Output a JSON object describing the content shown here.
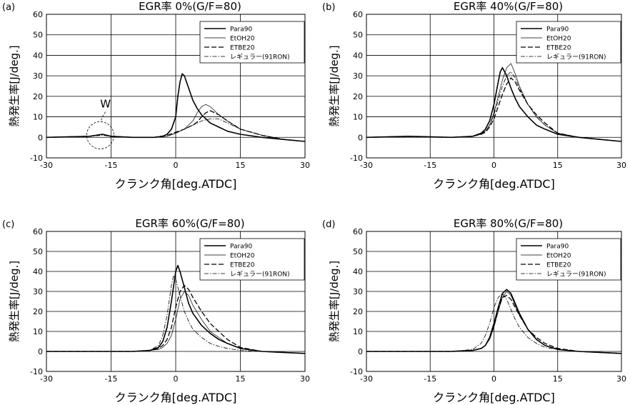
{
  "figure": {
    "panel_titles": [
      "EGR率 0%(G/F=80)",
      "EGR率 40%(G/F=80)",
      "EGR率 60%(G/F=80)",
      "EGR率 80%(G/F=80)"
    ],
    "xlabel": "クランク角[deg.ATDC]",
    "ylabel": "熱発生率[J/deg.]",
    "x_ticks": [
      "-30",
      "-15",
      "0",
      "15",
      "30"
    ],
    "y_ticks": [
      "-10",
      "0",
      "10",
      "20",
      "30",
      "40",
      "50",
      "60"
    ],
    "annotation_w": "W"
  },
  "chart_data": [
    {
      "type": "line",
      "panel": "(a)",
      "title": "EGR率 0%(G/F=80)",
      "xlabel": "クランク角[deg.ATDC]",
      "ylabel": "熱発生率[J/deg.]",
      "xlim": [
        -30,
        30
      ],
      "ylim": [
        -10,
        60
      ],
      "grid": true,
      "legend": "top-right",
      "series": [
        {
          "name": "Para90",
          "style": "solid",
          "x": [
            -30,
            -20,
            -17,
            -15,
            -10,
            -5,
            -3,
            -2,
            -1,
            0,
            0.5,
            1,
            1.5,
            2,
            3,
            4,
            5,
            6,
            8,
            10,
            12,
            15,
            20,
            25,
            30
          ],
          "y": [
            0,
            0.5,
            1.5,
            0.5,
            0,
            0,
            0.5,
            1.5,
            4,
            10,
            20,
            27,
            31,
            30,
            24,
            18,
            14,
            11,
            7,
            5,
            3,
            1.5,
            0,
            -1,
            -2
          ]
        },
        {
          "name": "EtOH20",
          "style": "thin",
          "x": [
            -30,
            -20,
            -17,
            -15,
            -10,
            -5,
            -2,
            0,
            2,
            4,
            5,
            6,
            7,
            8,
            9,
            10,
            12,
            15,
            20,
            25,
            30
          ],
          "y": [
            0,
            0.5,
            1.5,
            0.5,
            0,
            0,
            0.5,
            2,
            4,
            8,
            12,
            15,
            16,
            15,
            13,
            11,
            8,
            4,
            1,
            -1,
            -2
          ]
        },
        {
          "name": "ETBE20",
          "style": "long-dash",
          "x": [
            -30,
            -20,
            -17,
            -15,
            -10,
            -5,
            -2,
            0,
            2,
            4,
            5,
            6,
            7,
            8,
            9,
            10,
            12,
            15,
            20,
            25,
            30
          ],
          "y": [
            0,
            0.5,
            1.5,
            0.5,
            0,
            0,
            1,
            2.5,
            4,
            6,
            7.5,
            10,
            12,
            13,
            12,
            11,
            8,
            4,
            1,
            -1,
            -2
          ]
        },
        {
          "name": "レギュラー(91RON)",
          "style": "dash-dot",
          "x": [
            -30,
            -20,
            -17,
            -15,
            -10,
            -5,
            -2,
            0,
            2,
            4,
            6,
            8,
            10,
            12,
            15,
            20,
            25,
            30
          ],
          "y": [
            0,
            0.5,
            1,
            0.5,
            0,
            0,
            0.5,
            2,
            4,
            6,
            8,
            9,
            9,
            7,
            4,
            1,
            -1,
            -2
          ]
        }
      ]
    },
    {
      "type": "line",
      "panel": "(b)",
      "title": "EGR率 40%(G/F=80)",
      "xlabel": "クランク角[deg.ATDC]",
      "ylabel": "熱発生率[J/deg.]",
      "xlim": [
        -30,
        30
      ],
      "ylim": [
        -10,
        60
      ],
      "grid": true,
      "legend": "top-right",
      "series": [
        {
          "name": "Para90",
          "style": "solid",
          "x": [
            -30,
            -20,
            -10,
            -5,
            -3,
            -2,
            -1,
            0,
            1,
            1.5,
            2,
            3,
            4,
            5,
            6,
            8,
            10,
            12,
            15,
            20,
            25,
            30
          ],
          "y": [
            0,
            0.5,
            0,
            0.5,
            2,
            4,
            8,
            16,
            27,
            32,
            34,
            30,
            24,
            19,
            15,
            10,
            6,
            4,
            1.5,
            0,
            -1,
            -2
          ]
        },
        {
          "name": "EtOH20",
          "style": "thin",
          "x": [
            -30,
            -20,
            -10,
            -5,
            -3,
            -2,
            -1,
            0,
            1,
            2,
            3,
            4,
            5,
            6,
            8,
            10,
            12,
            15,
            20,
            25,
            30
          ],
          "y": [
            0,
            0.5,
            0,
            0.5,
            1.5,
            3,
            6,
            12,
            20,
            28,
            34,
            36,
            31,
            25,
            16,
            10,
            6,
            2,
            0,
            -1,
            -2
          ]
        },
        {
          "name": "ETBE20",
          "style": "long-dash",
          "x": [
            -30,
            -20,
            -10,
            -5,
            -3,
            -2,
            -1,
            0,
            1,
            2,
            3,
            4,
            5,
            6,
            8,
            10,
            12,
            15,
            20,
            25,
            30
          ],
          "y": [
            0,
            0.5,
            0,
            0.5,
            1.5,
            2.5,
            5,
            9,
            15,
            21,
            26,
            29,
            27,
            23,
            16,
            11,
            7,
            2,
            0,
            -1,
            -2
          ]
        },
        {
          "name": "レギュラー(91RON)",
          "style": "dash-dot",
          "x": [
            -30,
            -20,
            -10,
            -5,
            -3,
            -2,
            -1,
            0,
            1,
            2,
            3,
            4,
            5,
            6,
            8,
            10,
            12,
            15,
            20,
            25,
            30
          ],
          "y": [
            0,
            0.5,
            0,
            0.5,
            2,
            3,
            6,
            11,
            18,
            25,
            30,
            32,
            29,
            24,
            16,
            10,
            6,
            2,
            0,
            -1,
            -2
          ]
        }
      ]
    },
    {
      "type": "line",
      "panel": "(c)",
      "title": "EGR率 60%(G/F=80)",
      "xlabel": "クランク角[deg.ATDC]",
      "ylabel": "熱発生率[J/deg.]",
      "xlim": [
        -30,
        30
      ],
      "ylim": [
        -10,
        60
      ],
      "grid": true,
      "legend": "top-right",
      "series": [
        {
          "name": "Para90",
          "style": "solid",
          "x": [
            -30,
            -20,
            -10,
            -6,
            -4,
            -3,
            -2,
            -1,
            0,
            0.5,
            1,
            2,
            3,
            4,
            6,
            8,
            10,
            12,
            15,
            20,
            25,
            30
          ],
          "y": [
            0,
            0,
            0,
            0.5,
            2,
            5,
            12,
            25,
            40,
            43,
            40,
            32,
            24,
            19,
            13,
            9,
            6,
            4,
            1.5,
            0,
            -0.5,
            -1
          ]
        },
        {
          "name": "EtOH20",
          "style": "thin",
          "x": [
            -30,
            -20,
            -10,
            -6,
            -4,
            -3,
            -2,
            -1,
            0,
            1,
            2,
            3,
            4,
            6,
            8,
            10,
            12,
            15,
            20,
            25,
            30
          ],
          "y": [
            0,
            0,
            0,
            0.5,
            1,
            2,
            4,
            8,
            16,
            26,
            30,
            28,
            23,
            16,
            10,
            7,
            4,
            1.5,
            0,
            -0.5,
            -1
          ]
        },
        {
          "name": "ETBE20",
          "style": "long-dash",
          "x": [
            -30,
            -20,
            -10,
            -6,
            -4,
            -3,
            -2,
            -1,
            0,
            1,
            2,
            3,
            4,
            6,
            8,
            10,
            12,
            15,
            20,
            25,
            30
          ],
          "y": [
            0,
            0,
            0,
            0.5,
            1.5,
            3,
            6,
            12,
            22,
            30,
            33,
            31,
            27,
            20,
            14,
            10,
            6,
            2,
            0,
            -0.5,
            -1
          ]
        },
        {
          "name": "レギュラー(91RON)",
          "style": "dash-dot",
          "x": [
            -30,
            -20,
            -10,
            -6,
            -4,
            -3,
            -2,
            -1,
            -0.5,
            0,
            1,
            2,
            3,
            4,
            6,
            8,
            10,
            12,
            15,
            20,
            25,
            30
          ],
          "y": [
            0,
            0,
            0,
            0.5,
            3,
            8,
            18,
            33,
            38,
            36,
            28,
            20,
            15,
            11,
            7,
            4,
            2.5,
            1.5,
            0.5,
            0,
            -0.5,
            -1
          ]
        }
      ]
    },
    {
      "type": "line",
      "panel": "(d)",
      "title": "EGR率 80%(G/F=80)",
      "xlabel": "クランク角[deg.ATDC]",
      "ylabel": "熱発生率[J/deg.]",
      "xlim": [
        -30,
        30
      ],
      "ylim": [
        -10,
        60
      ],
      "grid": true,
      "legend": "top-right",
      "series": [
        {
          "name": "Para90",
          "style": "solid",
          "x": [
            -30,
            -20,
            -10,
            -5,
            -3,
            -2,
            -1,
            0,
            1,
            2,
            3,
            4,
            5,
            6,
            8,
            10,
            12,
            15,
            20,
            25,
            30
          ],
          "y": [
            0,
            0,
            0,
            0.5,
            1.5,
            3,
            7,
            14,
            22,
            29,
            31,
            29,
            24,
            19,
            11,
            6,
            3,
            1,
            0,
            -0.5,
            -1
          ]
        },
        {
          "name": "EtOH20",
          "style": "thin",
          "x": [
            -30,
            -20,
            -10,
            -5,
            -3,
            -2,
            -1,
            0,
            1,
            2,
            3,
            4,
            5,
            6,
            8,
            10,
            12,
            15,
            20,
            25,
            30
          ],
          "y": [
            0,
            0,
            0,
            0.5,
            1.5,
            3,
            6,
            12,
            20,
            27,
            30,
            28,
            23,
            18,
            11,
            6,
            3,
            1,
            0,
            -0.5,
            -1
          ]
        },
        {
          "name": "ETBE20",
          "style": "long-dash",
          "x": [
            -30,
            -20,
            -10,
            -5,
            -3,
            -2,
            -1,
            0,
            1,
            2,
            3,
            4,
            5,
            6,
            8,
            10,
            12,
            15,
            20,
            25,
            30
          ],
          "y": [
            0,
            0,
            0,
            0.5,
            1.5,
            3,
            7,
            13,
            21,
            27,
            28,
            26,
            22,
            18,
            11,
            7,
            4,
            1.5,
            0,
            -0.5,
            -1
          ]
        },
        {
          "name": "レギュラー(91RON)",
          "style": "dash-dot",
          "x": [
            -30,
            -20,
            -10,
            -5,
            -3,
            -2,
            -1,
            0,
            1,
            2,
            3,
            4,
            5,
            6,
            8,
            10,
            12,
            15,
            20,
            25,
            30
          ],
          "y": [
            0,
            0,
            0,
            1,
            4,
            8,
            14,
            22,
            27,
            29,
            26,
            21,
            16,
            12,
            7,
            4,
            2,
            1,
            0,
            -0.5,
            -1
          ]
        }
      ]
    }
  ]
}
